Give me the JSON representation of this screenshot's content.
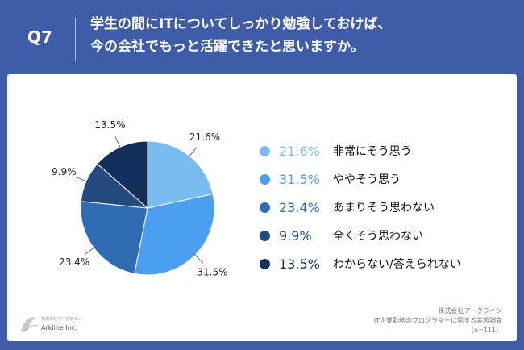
{
  "question": {
    "label": "Q7",
    "line1": "学生の間にITについてしっかり勉強しておけば、",
    "line2": "今の会社でもっと活躍できたと思いますか。"
  },
  "chart_data": {
    "type": "pie",
    "categories": [
      "非常にそう思う",
      "ややそう思う",
      "あまりそう思わない",
      "全くそう思わない",
      "わからない/答えられない"
    ],
    "values": [
      21.6,
      31.5,
      23.4,
      9.9,
      13.5
    ],
    "labels": [
      "21.6%",
      "31.5%",
      "23.4%",
      "9.9%",
      "13.5%"
    ],
    "colors": [
      "#79bdf0",
      "#4b9ff0",
      "#2f6cb2",
      "#244b80",
      "#132f5c"
    ],
    "start_angle": "12 o'clock",
    "direction": "clockwise",
    "legend_position": "right"
  },
  "footer": {
    "company": "株式会社アークライン",
    "survey": "IT企業勤務のプログラマーに関する実態調査",
    "n": "（n=111）"
  },
  "logo": {
    "name": "Arkline Inc.",
    "jp": "株式会社アークライン"
  }
}
